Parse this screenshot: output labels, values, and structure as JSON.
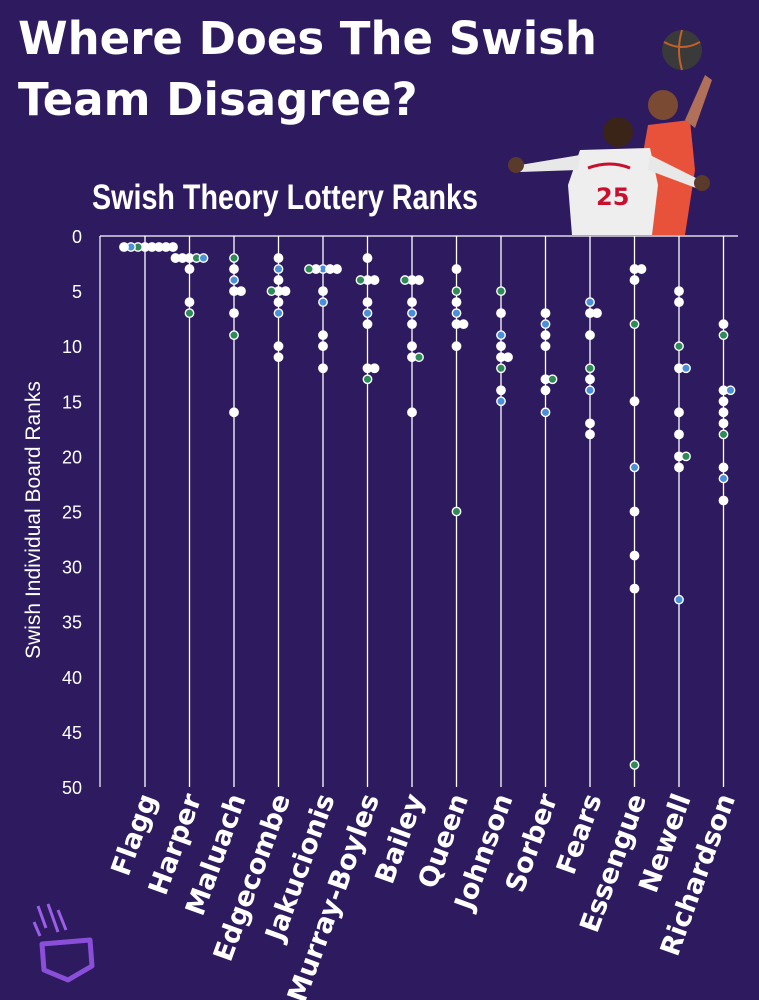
{
  "headline": {
    "line1": "Where Does The Swish",
    "line2": "Team Disagree?"
  },
  "colors": {
    "background": "#2e1a5e",
    "axis": "#ffffff",
    "dot_white": "#ffffff",
    "dot_green": "#2e8b57",
    "dot_blue": "#4a90d9"
  },
  "chart_data": {
    "type": "scatter",
    "title": "Swish Theory Lottery Ranks",
    "ylabel": "Swish Individual Board Ranks",
    "xlabel": "",
    "ylim": [
      0,
      50
    ],
    "y_inverted": true,
    "yticks": [
      "0",
      "5",
      "10",
      "15",
      "20",
      "25",
      "30",
      "35",
      "40",
      "45",
      "50"
    ],
    "grid": "vertical lines per category",
    "categories": [
      "Flagg",
      "Harper",
      "Maluach",
      "Edgecombe",
      "Jakucionis",
      "Murray-Boyles",
      "Bailey",
      "Queen",
      "Johnson",
      "Sorber",
      "Fears",
      "Essengue",
      "Newell",
      "Richardson"
    ],
    "series": [
      {
        "values": [
          [
            1,
            1,
            1,
            1,
            1,
            1,
            1,
            1
          ],
          [
            2,
            2,
            2,
            2,
            2,
            3,
            6,
            7
          ],
          [
            2,
            3,
            4,
            5,
            5,
            7,
            9,
            16
          ],
          [
            2,
            3,
            4,
            5,
            5,
            5,
            6,
            7,
            10,
            11
          ],
          [
            3,
            3,
            3,
            3,
            3,
            5,
            6,
            9,
            10,
            12
          ],
          [
            2,
            4,
            4,
            4,
            6,
            7,
            8,
            12,
            12,
            13
          ],
          [
            4,
            4,
            4,
            6,
            7,
            8,
            10,
            11,
            11,
            16
          ],
          [
            3,
            5,
            6,
            7,
            8,
            8,
            10,
            25
          ],
          [
            5,
            7,
            9,
            10,
            11,
            11,
            12,
            14,
            15
          ],
          [
            7,
            8,
            9,
            10,
            13,
            13,
            14,
            16
          ],
          [
            6,
            7,
            7,
            9,
            12,
            13,
            14,
            17,
            18
          ],
          [
            3,
            3,
            4,
            8,
            15,
            21,
            25,
            29,
            32,
            48
          ],
          [
            5,
            6,
            10,
            12,
            12,
            16,
            18,
            20,
            20,
            21,
            33
          ],
          [
            8,
            9,
            14,
            14,
            15,
            16,
            17,
            18,
            21,
            22,
            24
          ]
        ]
      }
    ]
  }
}
